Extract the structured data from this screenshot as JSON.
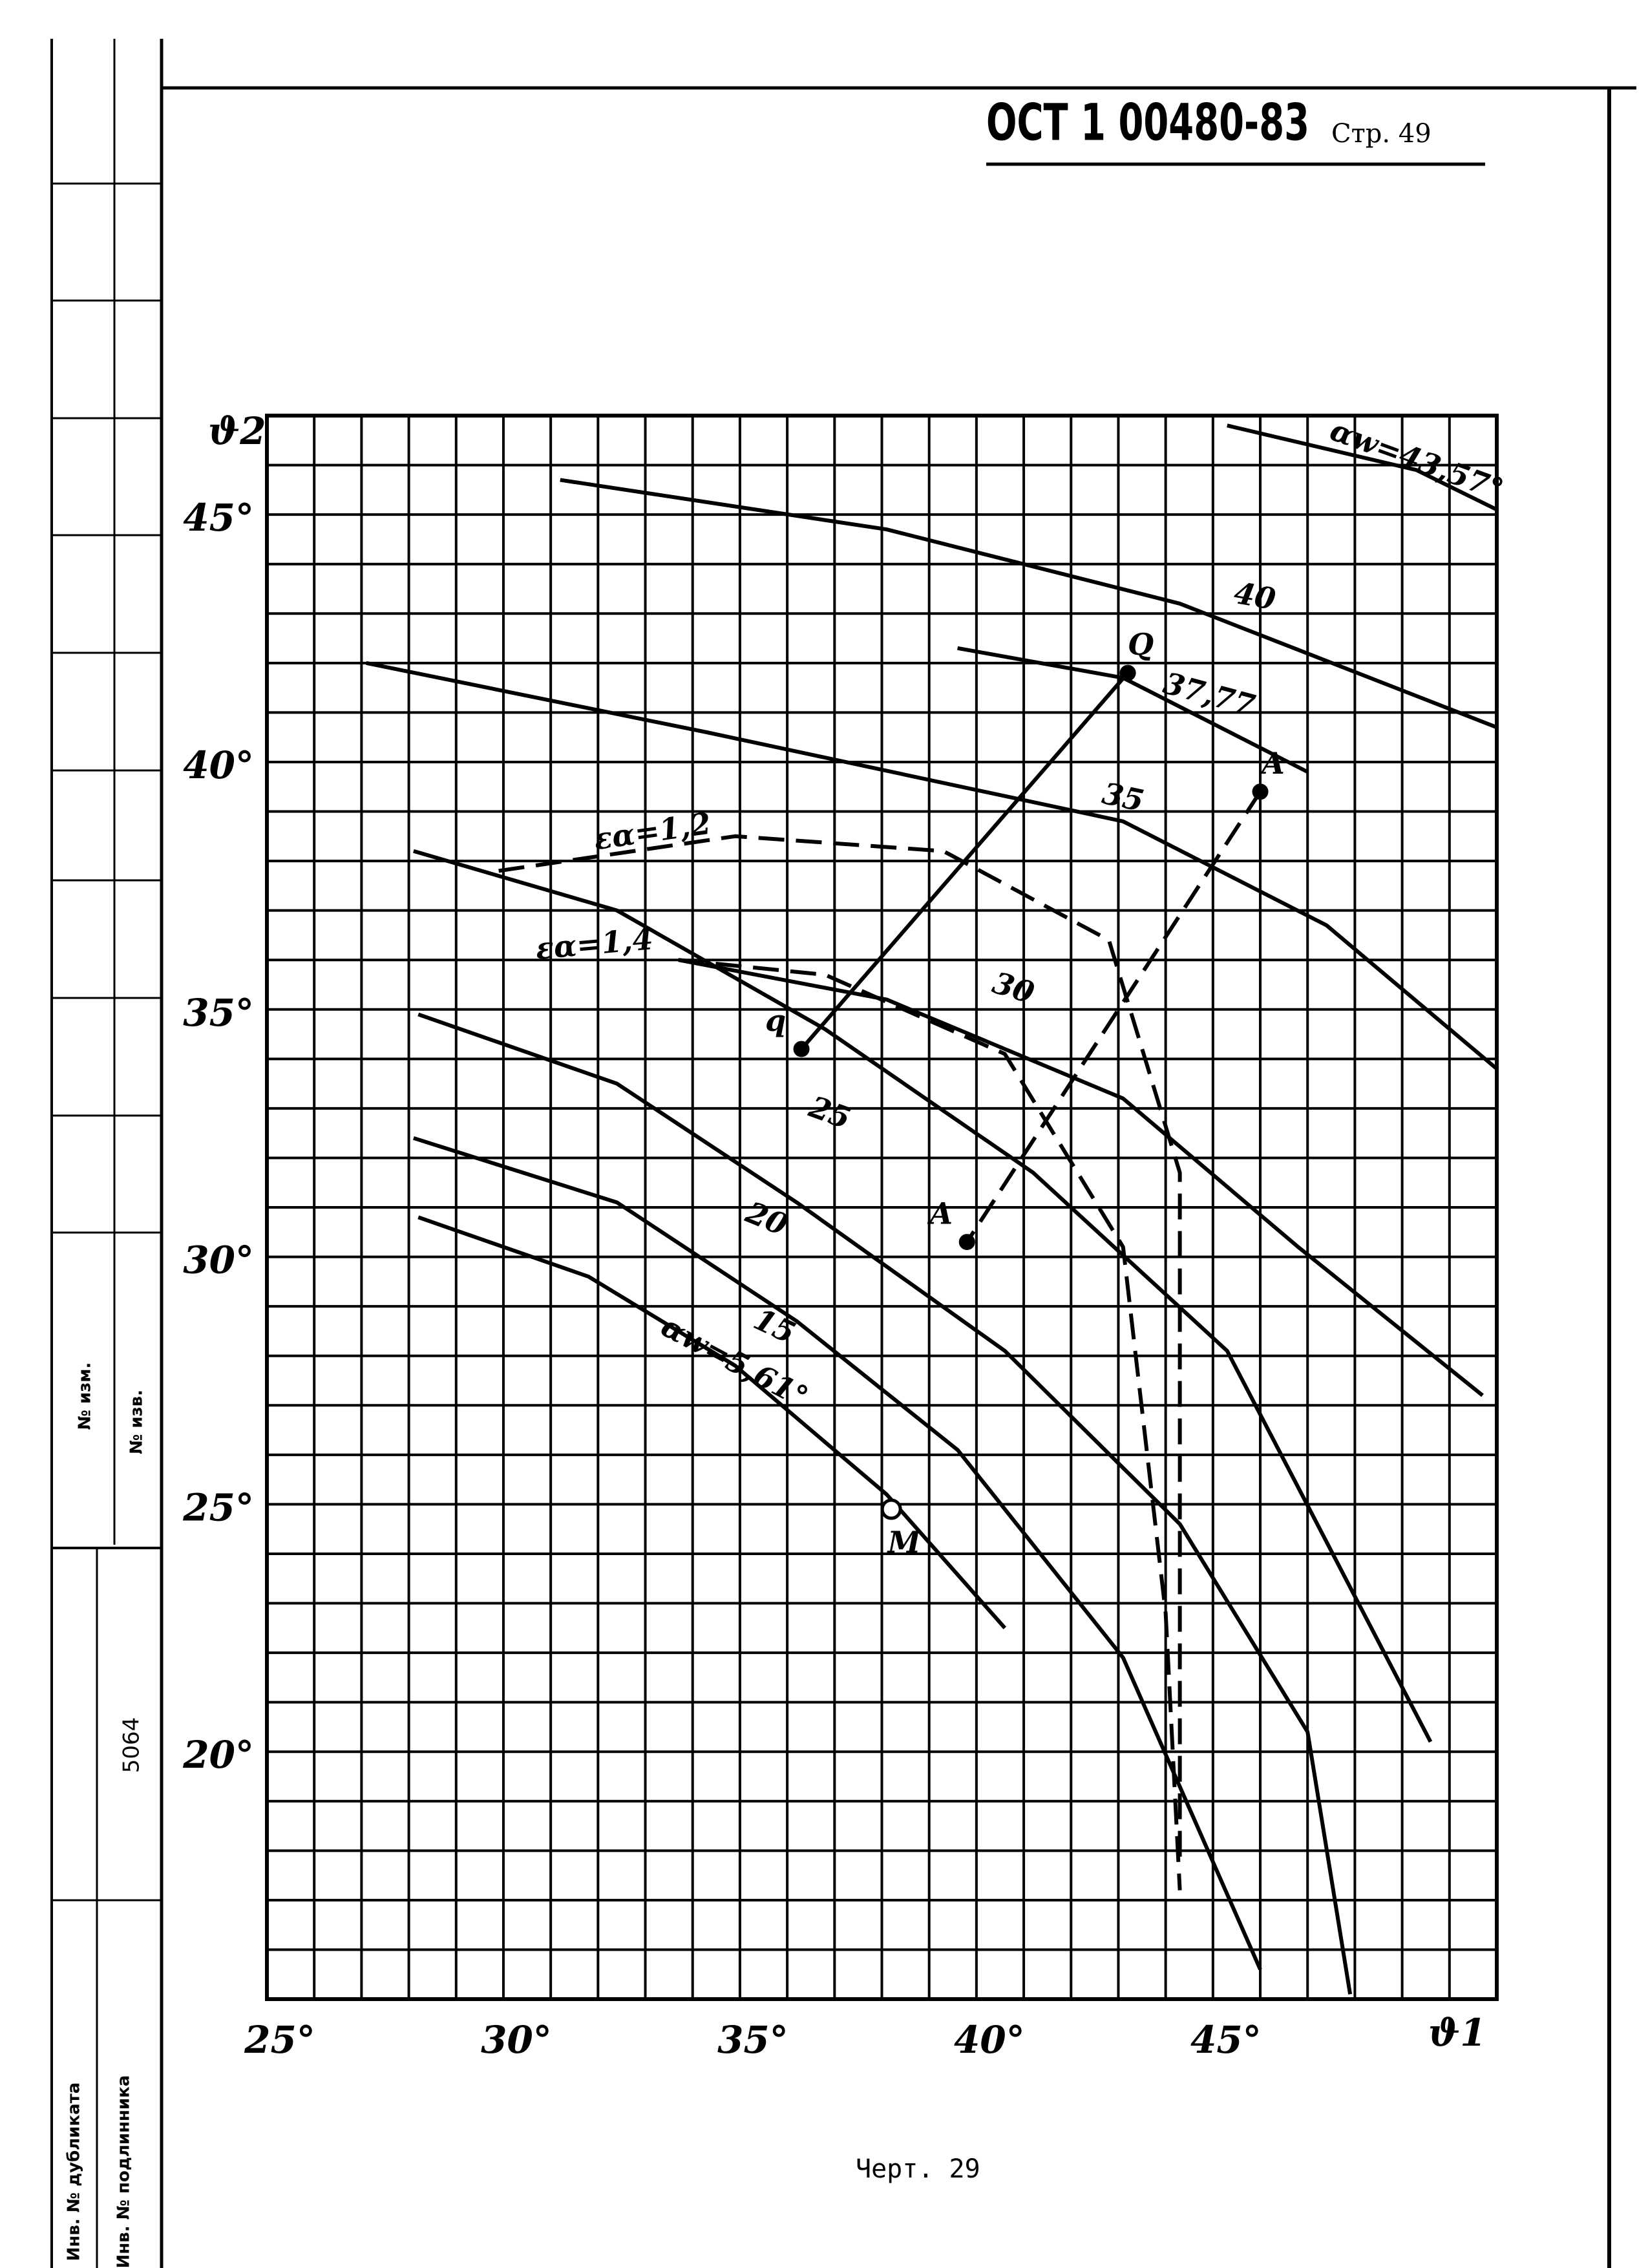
{
  "header": {
    "doc": "ОСТ 1 00480-83",
    "page": "Стр. 49"
  },
  "stamp": {
    "change_no": "№ изм.",
    "notice_no": "№ изв.",
    "inventory": "5064",
    "duplicate": "Инв. № дубликата",
    "original": "Инв. № подлинника"
  },
  "caption": "Черт. 29",
  "chart_data": {
    "type": "line",
    "x_label": "ϑ1",
    "y_label": "ϑ2",
    "xlim": [
      25,
      51
    ],
    "ylim": [
      15,
      47
    ],
    "grid": true,
    "grid_step": 1,
    "xticks": [
      {
        "value": 25,
        "label": "25°"
      },
      {
        "value": 30,
        "label": "30°"
      },
      {
        "value": 35,
        "label": "35°"
      },
      {
        "value": 40,
        "label": "40°"
      },
      {
        "value": 45,
        "label": "45°"
      }
    ],
    "yticks": [
      {
        "value": 20,
        "label": "20°"
      },
      {
        "value": 25,
        "label": "25°"
      },
      {
        "value": 30,
        "label": "30°"
      },
      {
        "value": 35,
        "label": "35°"
      },
      {
        "value": 40,
        "label": "40°"
      },
      {
        "value": 45,
        "label": "45°"
      }
    ],
    "series": [
      {
        "name": "αw=5,61°",
        "color": "#000000",
        "dash": false,
        "x": [
          28.2,
          31.8,
          34.9,
          38.1,
          40.6
        ],
        "values": [
          30.8,
          29.6,
          27.8,
          25.2,
          22.5
        ]
      },
      {
        "name": "15",
        "color": "#000000",
        "dash": false,
        "x": [
          28.1,
          32.4,
          36.2,
          39.6,
          43.1,
          46.0
        ],
        "values": [
          32.4,
          31.1,
          28.7,
          26.1,
          21.9,
          15.6
        ]
      },
      {
        "name": "20",
        "color": "#000000",
        "dash": false,
        "x": [
          28.2,
          32.4,
          36.2,
          40.6,
          44.3,
          47.0,
          47.9
        ],
        "values": [
          34.9,
          33.5,
          31.1,
          28.1,
          24.6,
          20.4,
          15.1
        ]
      },
      {
        "name": "25",
        "color": "#000000",
        "dash": false,
        "x": [
          28.1,
          32.4,
          36.8,
          41.2,
          45.3,
          49.6
        ],
        "values": [
          38.2,
          37.0,
          34.6,
          31.7,
          28.1,
          20.2
        ]
      },
      {
        "name": "30",
        "color": "#000000",
        "dash": false,
        "x": [
          33.7,
          38.1,
          43.1,
          46.8,
          50.7
        ],
        "values": [
          36.0,
          35.2,
          33.2,
          30.2,
          27.2
        ]
      },
      {
        "name": "35",
        "color": "#000000",
        "dash": false,
        "x": [
          27.1,
          34.3,
          43.1,
          47.4,
          51.0
        ],
        "values": [
          42.0,
          40.6,
          38.8,
          36.7,
          33.8
        ]
      },
      {
        "name": "37,77",
        "color": "#000000",
        "dash": false,
        "x": [
          39.6,
          43.1,
          47.0
        ],
        "values": [
          42.3,
          41.7,
          39.8
        ]
      },
      {
        "name": "40",
        "color": "#000000",
        "dash": false,
        "x": [
          31.2,
          38.1,
          44.3,
          51.0
        ],
        "values": [
          45.7,
          44.7,
          43.2,
          40.7
        ]
      },
      {
        "name": "αw=43,57°",
        "color": "#000000",
        "dash": false,
        "x": [
          45.3,
          49.3,
          51.0
        ],
        "values": [
          46.8,
          45.9,
          45.1
        ]
      },
      {
        "name": "εα=1,2",
        "color": "#000000",
        "dash": true,
        "x": [
          29.9,
          34.9,
          39.3,
          42.8,
          44.3,
          44.3
        ],
        "values": [
          37.8,
          38.5,
          38.2,
          36.4,
          31.7,
          17.8
        ]
      },
      {
        "name": "εα=1,4",
        "color": "#000000",
        "dash": true,
        "x": [
          33.7,
          36.8,
          40.6,
          43.1,
          44.0,
          44.3
        ],
        "values": [
          36.0,
          35.7,
          34.1,
          30.2,
          22.8,
          17.2
        ]
      }
    ],
    "guides": [
      {
        "labels": [
          "Q",
          "q"
        ],
        "dash": false,
        "x": [
          43.2,
          36.3
        ],
        "values": [
          41.8,
          34.2
        ]
      },
      {
        "labels": [
          "A",
          "A"
        ],
        "dash": true,
        "x": [
          46.0,
          39.8
        ],
        "values": [
          39.4,
          30.3
        ]
      },
      {
        "labels": [
          "M"
        ],
        "dash": false,
        "x": [
          38.2
        ],
        "values": [
          24.9
        ]
      }
    ]
  }
}
